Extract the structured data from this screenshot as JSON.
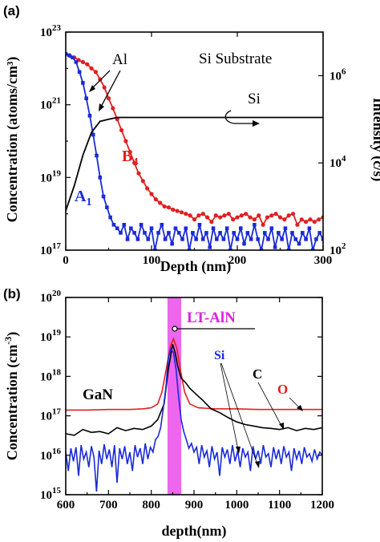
{
  "chart_data": [
    {
      "panel": "(a)",
      "type": "line",
      "xlabel": "Depth (nm)",
      "ylabel": "Concentration (atoms/cm³)",
      "ylabel_right": "Intensity (c/s)",
      "xlim": [
        0,
        300
      ],
      "ylim": [
        1e+17,
        1e+23
      ],
      "yscale": "log",
      "ylim_right": [
        100,
        10000000
      ],
      "yscale_right": "log",
      "x_ticks": [
        "0",
        "100",
        "200",
        "300"
      ],
      "y_ticks": [
        {
          "value": 1e+17,
          "base": "10",
          "exp": "17"
        },
        {
          "value": 1e+19,
          "base": "10",
          "exp": "19"
        },
        {
          "value": 1e+21,
          "base": "10",
          "exp": "21"
        },
        {
          "value": 1e+23,
          "base": "10",
          "exp": "23"
        }
      ],
      "y_ticks_right": [
        {
          "value": 100,
          "base": "10",
          "exp": "2"
        },
        {
          "value": 10000,
          "base": "10",
          "exp": "4"
        },
        {
          "value": 1000000,
          "base": "10",
          "exp": "6"
        }
      ],
      "annotations": {
        "substrate": "Si Substrate",
        "al": "Al",
        "si": "Si",
        "b_main": "B",
        "b_sub": "4",
        "a_main": "A",
        "a_sub": "1"
      },
      "series": [
        {
          "name": "B4",
          "color": "#e02020",
          "marker": "circle",
          "axis": "left",
          "x": [
            0,
            5,
            10,
            15,
            20,
            25,
            30,
            35,
            40,
            45,
            50,
            55,
            60,
            65,
            70,
            75,
            80,
            85,
            90,
            95,
            100,
            105,
            110,
            115,
            120,
            125,
            130,
            135,
            140,
            145,
            150,
            155,
            160,
            165,
            170,
            175,
            180,
            185,
            190,
            195,
            200,
            205,
            210,
            215,
            220,
            225,
            230,
            235,
            240,
            245,
            250,
            255,
            260,
            265,
            270,
            275,
            280,
            285,
            290,
            295,
            300
          ],
          "y": [
            2.5e+22,
            2.2e+22,
            2e+22,
            1.7e+22,
            1.5e+22,
            1.3e+22,
            1e+22,
            8e+21,
            5e+21,
            3e+21,
            1.5e+21,
            8e+20,
            4e+20,
            2e+20,
            1e+20,
            5e+19,
            2.5e+19,
            1.3e+19,
            8e+18,
            5e+18,
            3.5e+18,
            2.5e+18,
            2e+18,
            1.6e+18,
            1.5e+18,
            1.3e+18,
            1.2e+18,
            1.1e+18,
            1e+18,
            9e+17,
            7e+17,
            9e+17,
            1e+18,
            8e+17,
            6e+17,
            9e+17,
            8e+17,
            9e+17,
            1e+18,
            7e+17,
            8e+17,
            9e+17,
            1e+18,
            8e+17,
            7e+17,
            9e+17,
            5e+17,
            8e+17,
            9e+17,
            1e+18,
            8e+17,
            7e+17,
            9e+17,
            1e+18,
            5e+17,
            7e+17,
            6e+17,
            7e+17,
            6e+17,
            7e+17,
            8e+17
          ]
        },
        {
          "name": "A1",
          "color": "#1a2ad8",
          "marker": "square",
          "axis": "left",
          "x": [
            0,
            4,
            8,
            12,
            16,
            20,
            24,
            28,
            32,
            36,
            40,
            44,
            48,
            52,
            56,
            60,
            64,
            68,
            72,
            76,
            80,
            84,
            88,
            92,
            96,
            100,
            104,
            108,
            112,
            116,
            120,
            124,
            128,
            132,
            136,
            140,
            144,
            148,
            152,
            156,
            160,
            164,
            168,
            172,
            176,
            180,
            184,
            188,
            192,
            196,
            200,
            204,
            208,
            212,
            216,
            220,
            224,
            228,
            232,
            236,
            240,
            244,
            248,
            252,
            256,
            260,
            264,
            268,
            272,
            276,
            280,
            284,
            288,
            292,
            296,
            300
          ],
          "y": [
            2.5e+22,
            2.3e+22,
            2e+22,
            1.5e+22,
            8e+21,
            4e+21,
            1.5e+21,
            5e+20,
            1.5e+20,
            4e+19,
            1e+19,
            3e+18,
            1.5e+18,
            8e+17,
            5e+17,
            4e+17,
            3e+17,
            5e+17,
            2e+17,
            4e+17,
            3e+17,
            2e+17,
            5e+17,
            3e+17,
            2e+17,
            4e+17,
            1e+17,
            3e+17,
            5e+17,
            2e+17,
            3e+17,
            1.5e+17,
            4e+17,
            3e+17,
            2e+17,
            4e+17,
            1e+17,
            3e+17,
            2e+17,
            5e+17,
            2e+17,
            3e+17,
            1.2e+17,
            4e+17,
            2e+17,
            3e+17,
            2e+17,
            4e+17,
            1e+17,
            3e+17,
            2e+17,
            4e+17,
            1.5e+17,
            3e+17,
            2e+17,
            5e+17,
            2e+17,
            1e+17,
            3e+17,
            2e+17,
            4e+17,
            1.2e+17,
            3e+17,
            2e+17,
            4e+17,
            1e+17,
            3e+17,
            2e+17,
            1.5e+17,
            3e+17,
            2e+17,
            4e+17,
            1e+17,
            2e+17,
            3e+17,
            2e+17
          ]
        },
        {
          "name": "Si",
          "color": "#000000",
          "marker": "none",
          "axis": "right",
          "x": [
            0,
            10,
            20,
            30,
            40,
            50,
            60,
            70,
            80,
            90,
            100,
            150,
            200,
            250,
            300
          ],
          "y": [
            800,
            3000,
            15000,
            50000,
            90000,
            100000,
            110000,
            110000,
            110000,
            110000,
            110000,
            110000,
            110000,
            110000,
            110000
          ]
        }
      ]
    },
    {
      "panel": "(b)",
      "type": "line",
      "xlabel": "depth(nm)",
      "ylabel_main": "Concentration (cm",
      "ylabel_sup": "-3",
      "ylabel_close": ")",
      "xlim": [
        600,
        1200
      ],
      "ylim": [
        1000000000000000.0,
        1e+20
      ],
      "yscale": "log",
      "x_ticks": [
        "600",
        "700",
        "800",
        "900",
        "1000",
        "1100",
        "1200"
      ],
      "y_ticks": [
        {
          "value": 1000000000000000.0,
          "base": "10",
          "exp": "15"
        },
        {
          "value": 1e+16,
          "base": "10",
          "exp": "16"
        },
        {
          "value": 1e+17,
          "base": "10",
          "exp": "17"
        },
        {
          "value": 1e+18,
          "base": "10",
          "exp": "18"
        },
        {
          "value": 1e+19,
          "base": "10",
          "exp": "19"
        },
        {
          "value": 1e+20,
          "base": "10",
          "exp": "20"
        }
      ],
      "highlight": {
        "label": "LT-AlN",
        "from": 838,
        "to": 870,
        "color": "#ee66ee"
      },
      "annotations": {
        "gan": "GaN",
        "si": "Si",
        "c": "C",
        "o": "O"
      },
      "series": [
        {
          "name": "O",
          "color": "#e02020",
          "x": [
            600,
            650,
            700,
            750,
            780,
            800,
            815,
            825,
            835,
            845,
            852,
            860,
            868,
            878,
            890,
            910,
            950,
            1000,
            1050,
            1100,
            1150,
            1200
          ],
          "y": [
            1.4e+17,
            1.4e+17,
            1.45e+17,
            1.45e+17,
            1.5e+17,
            1.6e+17,
            2e+17,
            4e+17,
            1.5e+18,
            6e+18,
            9e+18,
            5e+18,
            1.5e+18,
            4e+17,
            2e+17,
            1.6e+17,
            1.5e+17,
            1.5e+17,
            1.45e+17,
            1.45e+17,
            1.45e+17,
            1.45e+17
          ]
        },
        {
          "name": "C",
          "color": "#000000",
          "x": [
            600,
            620,
            640,
            660,
            680,
            700,
            720,
            740,
            760,
            780,
            800,
            815,
            830,
            840,
            850,
            856,
            862,
            870,
            880,
            890,
            905,
            920,
            940,
            960,
            980,
            1000,
            1020,
            1040,
            1060,
            1080,
            1100,
            1120,
            1140,
            1160,
            1180,
            1200
          ],
          "y": [
            3.5e+16,
            3.2e+16,
            4.5e+16,
            3.8e+16,
            4e+16,
            3.5e+16,
            5e+16,
            4.2e+16,
            4.8e+16,
            4.5e+16,
            5.5e+16,
            8e+16,
            2e+17,
            1.5e+18,
            6.5e+18,
            4e+18,
            1.8e+18,
            9e+17,
            7e+17,
            5e+17,
            3.5e+17,
            2.5e+17,
            1.5e+17,
            1.2e+17,
            9e+16,
            7e+16,
            6e+16,
            5.5e+16,
            5e+16,
            4.8e+16,
            4.5e+16,
            5e+16,
            4.2e+16,
            4.8e+16,
            4.5e+16,
            5e+16
          ]
        },
        {
          "name": "Si",
          "color": "#1a2ad8",
          "x": [
            600,
            606,
            612,
            618,
            624,
            630,
            636,
            642,
            648,
            654,
            660,
            666,
            672,
            678,
            684,
            690,
            696,
            702,
            708,
            714,
            720,
            726,
            732,
            738,
            744,
            750,
            756,
            762,
            768,
            774,
            780,
            786,
            792,
            798,
            804,
            810,
            816,
            822,
            828,
            834,
            840,
            846,
            852,
            858,
            864,
            870,
            876,
            882,
            888,
            894,
            900,
            906,
            912,
            918,
            924,
            930,
            936,
            942,
            948,
            954,
            960,
            966,
            972,
            978,
            984,
            990,
            996,
            1002,
            1008,
            1014,
            1020,
            1026,
            1032,
            1038,
            1044,
            1050,
            1056,
            1062,
            1068,
            1074,
            1080,
            1086,
            1092,
            1098,
            1104,
            1110,
            1116,
            1122,
            1128,
            1134,
            1140,
            1146,
            1152,
            1158,
            1164,
            1170,
            1176,
            1182,
            1188,
            1194,
            1200
          ],
          "y": [
            1.2e+16,
            4000000000000000.0,
            1.5e+16,
            7000000000000000.0,
            1.6e+16,
            3000000000000000.0,
            1.8e+16,
            8000000000000000.0,
            1.2e+16,
            5000000000000000.0,
            1.7e+16,
            9000000000000000.0,
            1200000000000000.0,
            1.3e+16,
            6000000000000000.0,
            1.9e+16,
            8000000000000000.0,
            1.4e+16,
            5000000000000000.0,
            1.8e+16,
            2000000000000000.0,
            1.5e+16,
            8000000000000000.0,
            1.7e+16,
            6000000000000000.0,
            1.2e+16,
            4000000000000000.0,
            1.8e+16,
            9000000000000000.0,
            1.5e+16,
            6000000000000000.0,
            2e+16,
            8000000000000000.0,
            1.6e+16,
            1.2e+16,
            2.5e+16,
            3e+16,
            5e+16,
            1.5e+17,
            5e+17,
            3e+18,
            5e+18,
            4e+18,
            1.5e+18,
            3e+17,
            8e+16,
            4e+16,
            2.5e+16,
            1.5e+16,
            2e+16,
            1.2e+16,
            1.6e+16,
            6000000000000000.0,
            1.8e+16,
            9000000000000000.0,
            1.3e+16,
            5000000000000000.0,
            1.7e+16,
            8000000000000000.0,
            1.2e+16,
            3000000000000000.0,
            1.6e+16,
            9000000000000000.0,
            1.4e+16,
            6000000000000000.0,
            1.8e+16,
            7000000000000000.0,
            1.3e+16,
            5000000000000000.0,
            1.5e+16,
            9000000000000000.0,
            1.2e+16,
            4000000000000000.0,
            1.7e+16,
            8000000000000000.0,
            1.3e+16,
            6000000000000000.0,
            1.8e+16,
            9000000000000000.0,
            1.1e+16,
            5000000000000000.0,
            1.6e+16,
            8000000000000000.0,
            1.4e+16,
            6000000000000000.0,
            1.7e+16,
            9000000000000000.0,
            1.2e+16,
            4000000000000000.0,
            1.5e+16,
            8000000000000000.0,
            1.3e+16,
            6000000000000000.0,
            1.6e+16,
            9000000000000000.0,
            1.1e+16,
            7000000000000000.0,
            1.4e+16,
            8000000000000000.0,
            1.2e+16,
            1e+16
          ]
        }
      ]
    }
  ]
}
